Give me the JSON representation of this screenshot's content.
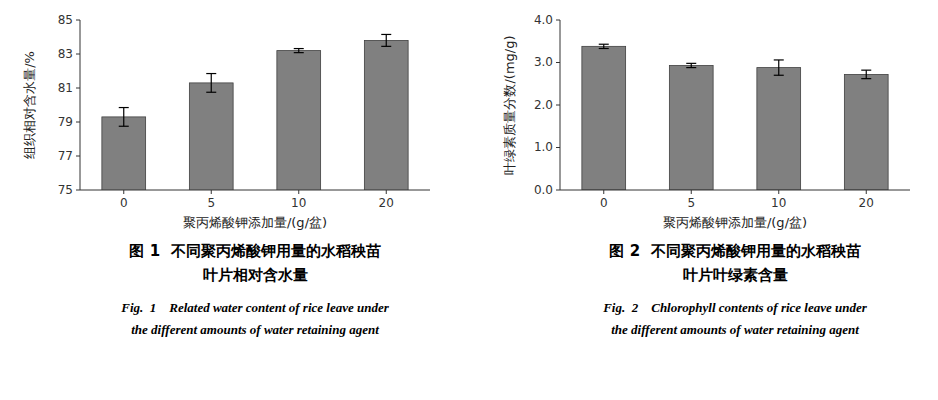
{
  "chart_data": [
    {
      "type": "bar",
      "categories": [
        "0",
        "5",
        "10",
        "20"
      ],
      "values": [
        79.3,
        81.3,
        83.2,
        83.8
      ],
      "errors": [
        0.55,
        0.55,
        0.12,
        0.35
      ],
      "color": "#808080",
      "ylabel": "组织相对含水量/%",
      "xlabel": "聚丙烯酸钾添加量/(g/盆)",
      "ylim": [
        75,
        85
      ],
      "yticks": [
        75,
        77,
        79,
        81,
        83,
        85
      ],
      "grid": false,
      "annotations": [
        "图 1  不同聚丙烯酸钾用量的水稻秧苗",
        "叶片相对含水量",
        "Fig.  1    Related water content of rice leave under",
        "the different amounts of water retaining agent"
      ]
    },
    {
      "type": "bar",
      "categories": [
        "0",
        "5",
        "10",
        "20"
      ],
      "values": [
        3.38,
        2.93,
        2.88,
        2.72
      ],
      "errors": [
        0.05,
        0.05,
        0.18,
        0.1
      ],
      "color": "#808080",
      "ylabel": "叶绿素质量分数/(mg/g)",
      "xlabel": "聚丙烯酸钾添加量/(g/盆)",
      "ylim": [
        0.0,
        4.0
      ],
      "yticks": [
        {
          "value": 0.0,
          "label": "0.0"
        },
        {
          "value": 1.0,
          "label": "1.0"
        },
        {
          "value": 2.0,
          "label": "2.0"
        },
        {
          "value": 3.0,
          "label": "3.0"
        },
        {
          "value": 4.0,
          "label": "4.0"
        }
      ],
      "grid": false,
      "annotations": [
        "图 2  不同聚丙烯酸钾用量的水稻秧苗",
        "叶片叶绿素含量",
        "Fig.  2    Chlorophyll contents of rice leave under",
        "the different amounts of water retaining agent"
      ]
    }
  ]
}
